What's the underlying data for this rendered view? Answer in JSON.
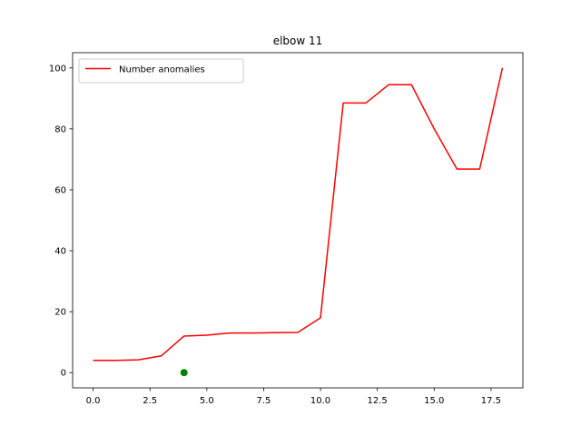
{
  "chart_data": {
    "type": "line",
    "title": "elbow 11",
    "xlabel": "",
    "ylabel": "",
    "xlim": [
      -0.9,
      18.9
    ],
    "ylim": [
      -5,
      105
    ],
    "x_ticks": [
      0.0,
      2.5,
      5.0,
      7.5,
      10.0,
      12.5,
      15.0,
      17.5
    ],
    "x_tick_labels": [
      "0.0",
      "2.5",
      "5.0",
      "7.5",
      "10.0",
      "12.5",
      "15.0",
      "17.5"
    ],
    "y_ticks": [
      0,
      20,
      40,
      60,
      80,
      100
    ],
    "y_tick_labels": [
      "0",
      "20",
      "40",
      "60",
      "80",
      "100"
    ],
    "grid": false,
    "legend_position": "upper-left",
    "series": [
      {
        "name": "Number anomalies",
        "type": "line",
        "color": "#ff0000",
        "x": [
          0,
          1,
          2,
          3,
          4,
          5,
          6,
          7,
          8,
          9,
          10,
          11,
          12,
          13,
          14,
          15,
          16,
          17,
          18
        ],
        "y": [
          4,
          4,
          4.2,
          5.5,
          12,
          12.3,
          13,
          13,
          13.1,
          13.2,
          18,
          88.5,
          88.5,
          94.5,
          94.5,
          80,
          66.8,
          66.8,
          100
        ]
      },
      {
        "type": "scatter",
        "color": "#008000",
        "x": [
          4
        ],
        "y": [
          0
        ]
      }
    ]
  }
}
